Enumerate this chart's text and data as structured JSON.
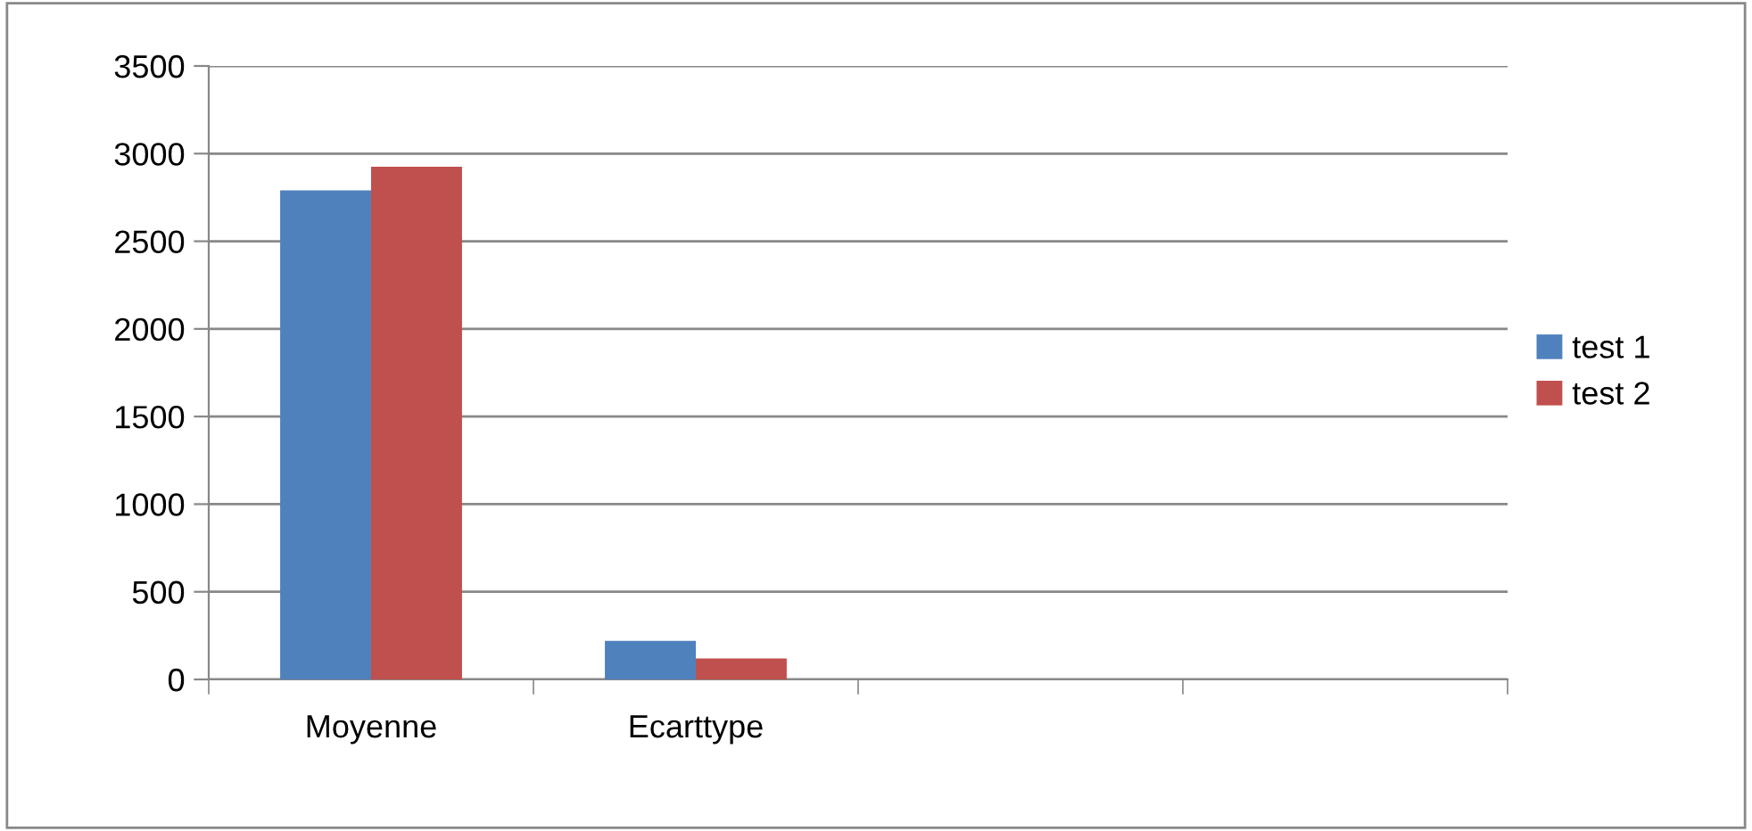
{
  "chart_data": {
    "type": "bar",
    "categories": [
      "Moyenne",
      "Ecarttype",
      null,
      null
    ],
    "series": [
      {
        "name": "test 1",
        "color": "#4f81bd",
        "values": [
          2790,
          220,
          null,
          null
        ]
      },
      {
        "name": "test 2",
        "color": "#c0504d",
        "values": [
          2925,
          120,
          null,
          null
        ]
      }
    ],
    "ylim": [
      0,
      3500
    ],
    "yticks": [
      0,
      500,
      1000,
      1500,
      2000,
      2500,
      3000,
      3500
    ],
    "grid": "y",
    "legend": "right"
  }
}
